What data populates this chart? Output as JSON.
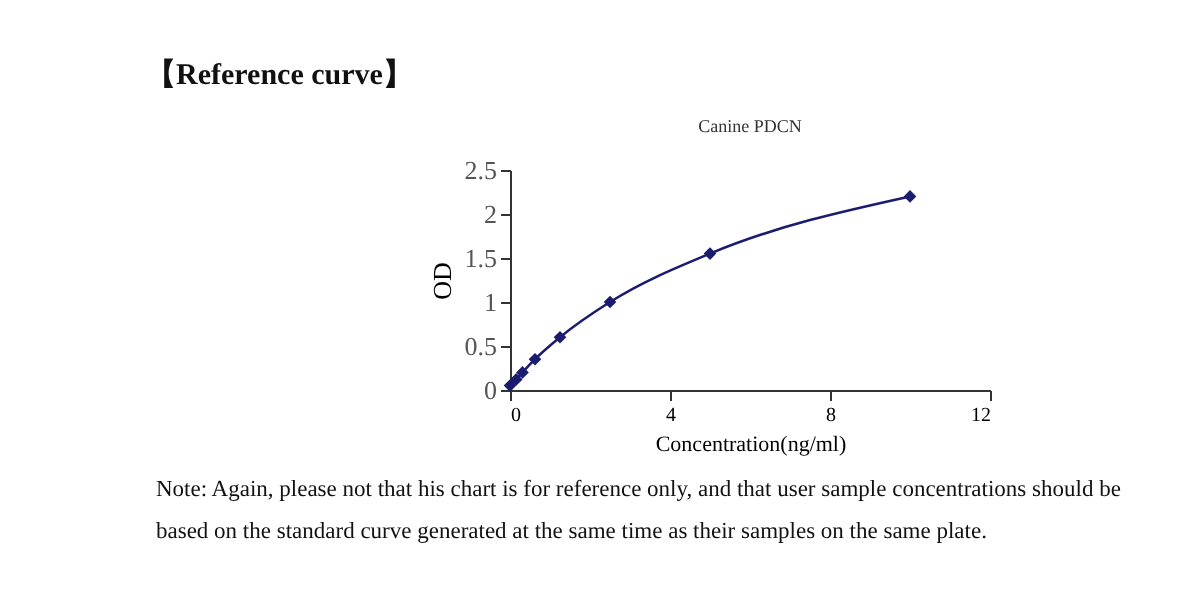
{
  "chart_data": {
    "type": "line",
    "title": "【Reference curve】",
    "subtitle": "Canine PDCN",
    "xlabel": "Concentration(ng/ml)",
    "ylabel": "OD",
    "x": [
      0,
      0.156,
      0.3125,
      0.625,
      1.25,
      2.5,
      5,
      10
    ],
    "series": [
      {
        "color": "#1c1c6e",
        "values": [
          0.05,
          0.12,
          0.2,
          0.35,
          0.6,
          1.0,
          1.55,
          2.2
        ]
      }
    ],
    "xlim": [
      0,
      12
    ],
    "xticks": [
      0,
      4,
      8,
      12
    ],
    "ylim": [
      0,
      2.5
    ],
    "yticks": [
      0,
      0.5,
      1,
      1.5,
      2,
      2.5
    ],
    "grid": false,
    "marker": "diamond",
    "line_style": "solid",
    "annotations": [
      "Note: Again, please not that his chart is for reference only, and that user sample concentrations should be based on the standard curve generated at the same time as their samples on the same plate."
    ]
  }
}
